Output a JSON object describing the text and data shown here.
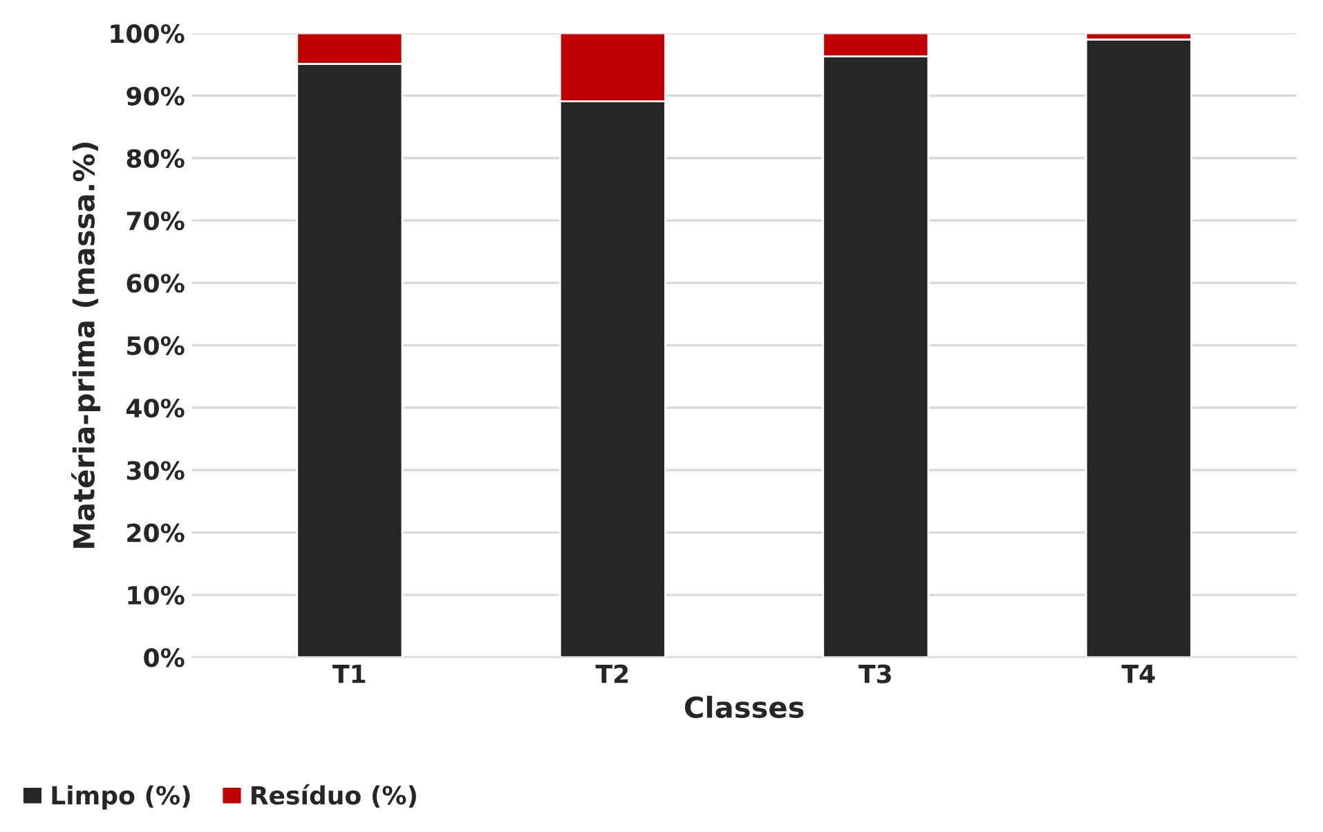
{
  "chart_data": {
    "type": "bar",
    "stacked": true,
    "xlabel": "Classes",
    "ylabel": "Matéria-prima (massa.%)",
    "categories": [
      "T1",
      "T2",
      "T3",
      "T4"
    ],
    "series": [
      {
        "name": "Limpo (%)",
        "color": "#262626",
        "values": [
          95.1,
          89.1,
          96.3,
          99.0
        ]
      },
      {
        "name": "Resíduo (%)",
        "color": "#c00000",
        "values": [
          4.9,
          10.9,
          3.7,
          1.0
        ]
      }
    ],
    "ylim": [
      0,
      100
    ],
    "yticks": [
      {
        "value": 0,
        "label": "0%"
      },
      {
        "value": 10,
        "label": "10%"
      },
      {
        "value": 20,
        "label": "20%"
      },
      {
        "value": 30,
        "label": "30%"
      },
      {
        "value": 40,
        "label": "40%"
      },
      {
        "value": 50,
        "label": "50%"
      },
      {
        "value": 60,
        "label": "60%"
      },
      {
        "value": 70,
        "label": "70%"
      },
      {
        "value": 80,
        "label": "80%"
      },
      {
        "value": 90,
        "label": "90%"
      },
      {
        "value": 100,
        "label": "100%"
      }
    ],
    "grid": "y",
    "legend": "bottom left"
  }
}
